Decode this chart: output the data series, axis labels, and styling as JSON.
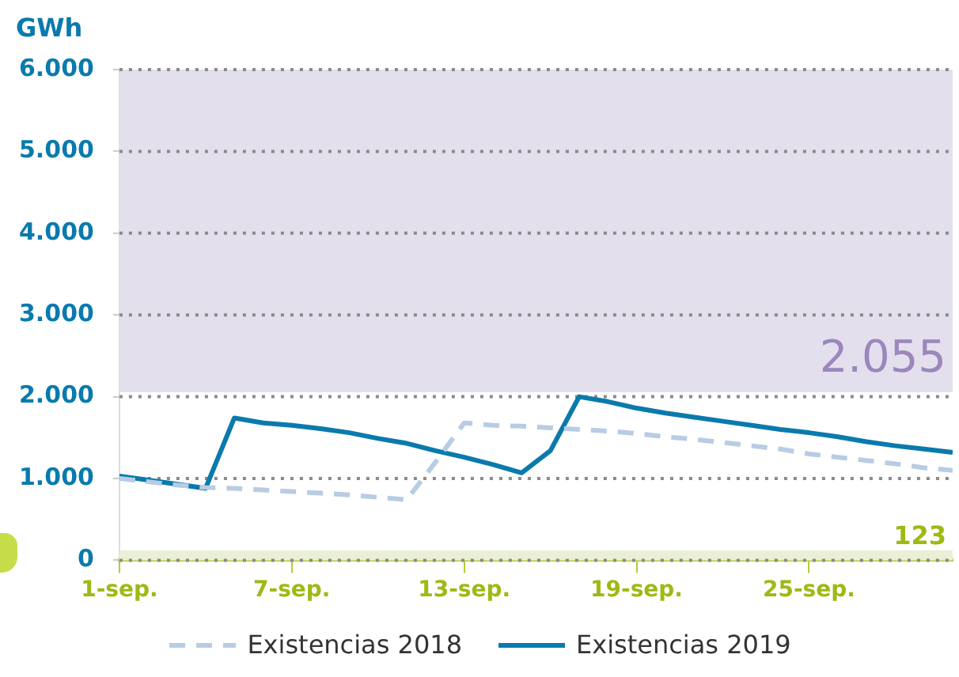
{
  "chart_data": {
    "type": "line",
    "ylabel": "GWh",
    "x": [
      "--09-01",
      "--09-02",
      "--09-03",
      "--09-04",
      "--09-05",
      "--09-06",
      "--09-07",
      "--09-08",
      "--09-09",
      "--09-10",
      "--09-11",
      "--09-12",
      "--09-13",
      "--09-14",
      "--09-15",
      "--09-16",
      "--09-17",
      "--09-18",
      "--09-19",
      "--09-20",
      "--09-21",
      "--09-22",
      "--09-23",
      "--09-24",
      "--09-25",
      "--09-26",
      "--09-27",
      "--09-28",
      "--09-29",
      "--09-30"
    ],
    "series": [
      {
        "name": "Existencias 2018",
        "color": "#b8cce4",
        "line_style": "dashed",
        "values": [
          1000,
          960,
          920,
          890,
          880,
          860,
          840,
          820,
          800,
          770,
          740,
          1200,
          1680,
          1650,
          1640,
          1620,
          1600,
          1580,
          1550,
          1510,
          1480,
          1440,
          1400,
          1360,
          1300,
          1260,
          1220,
          1180,
          1130,
          1100
        ]
      },
      {
        "name": "Existencias 2019",
        "color": "#0a7aad",
        "line_style": "solid",
        "values": [
          1030,
          980,
          930,
          880,
          1740,
          1680,
          1650,
          1610,
          1560,
          1490,
          1430,
          1340,
          1260,
          1170,
          1070,
          1340,
          2000,
          1940,
          1860,
          1800,
          1750,
          1700,
          1650,
          1600,
          1560,
          1510,
          1450,
          1400,
          1360,
          1320
        ]
      }
    ],
    "xlim": [
      "--09-01",
      "--09-30"
    ],
    "xticks": [
      {
        "value": "--09-01",
        "label": "1-sep."
      },
      {
        "value": "--09-07",
        "label": "7-sep."
      },
      {
        "value": "--09-13",
        "label": "13-sep."
      },
      {
        "value": "--09-19",
        "label": "19-sep."
      },
      {
        "value": "--09-25",
        "label": "25-sep."
      }
    ],
    "ylim": [
      0,
      6000
    ],
    "yticks": [
      {
        "value": 0,
        "label": "0"
      },
      {
        "value": 1000,
        "label": "1.000"
      },
      {
        "value": 2000,
        "label": "2.000"
      },
      {
        "value": 3000,
        "label": "3.000"
      },
      {
        "value": 4000,
        "label": "4.000"
      },
      {
        "value": 5000,
        "label": "5.000"
      },
      {
        "value": 6000,
        "label": "6.000"
      }
    ],
    "bands": [
      {
        "axis": "y",
        "from": 2055,
        "to": 6000,
        "label": "2.055",
        "color": "#e4dfec"
      },
      {
        "axis": "y",
        "from": 0,
        "to": 123,
        "label": "123",
        "color": "#eaf0d6"
      }
    ],
    "grid": "y",
    "legend": "bottom",
    "marker": "none"
  }
}
